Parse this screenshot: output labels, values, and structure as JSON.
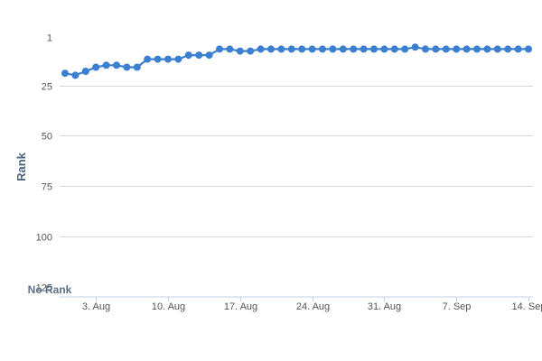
{
  "chart_data": {
    "type": "line",
    "ylabel": "Rank",
    "y_reversed": true,
    "ylim": [
      1,
      125
    ],
    "y_ticks": [
      1,
      25,
      50,
      75,
      100,
      125
    ],
    "y_floor_label": "No Rank",
    "x_start": "2024-07-31",
    "x_ticks": [
      {
        "label": "3. Aug",
        "date": "2024-08-03"
      },
      {
        "label": "10. Aug",
        "date": "2024-08-10"
      },
      {
        "label": "17. Aug",
        "date": "2024-08-17"
      },
      {
        "label": "24. Aug",
        "date": "2024-08-24"
      },
      {
        "label": "31. Aug",
        "date": "2024-08-31"
      },
      {
        "label": "7. Sep",
        "date": "2024-09-07"
      },
      {
        "label": "14. Sep",
        "date": "2024-09-14"
      }
    ],
    "grid": true,
    "legend": "none",
    "series": [
      {
        "color": "#3a7fd0",
        "x": [
          "2024-07-31",
          "2024-08-01",
          "2024-08-02",
          "2024-08-03",
          "2024-08-04",
          "2024-08-05",
          "2024-08-06",
          "2024-08-07",
          "2024-08-08",
          "2024-08-09",
          "2024-08-10",
          "2024-08-11",
          "2024-08-12",
          "2024-08-13",
          "2024-08-14",
          "2024-08-15",
          "2024-08-16",
          "2024-08-17",
          "2024-08-18",
          "2024-08-19",
          "2024-08-20",
          "2024-08-21",
          "2024-08-22",
          "2024-08-23",
          "2024-08-24",
          "2024-08-25",
          "2024-08-26",
          "2024-08-27",
          "2024-08-28",
          "2024-08-29",
          "2024-08-30",
          "2024-08-31",
          "2024-09-01",
          "2024-09-02",
          "2024-09-03",
          "2024-09-04",
          "2024-09-05",
          "2024-09-06",
          "2024-09-07",
          "2024-09-08",
          "2024-09-09",
          "2024-09-10",
          "2024-09-11",
          "2024-09-12",
          "2024-09-13",
          "2024-09-14"
        ],
        "values": [
          19,
          20,
          18,
          16,
          15,
          15,
          16,
          16,
          12,
          12,
          12,
          12,
          10,
          10,
          10,
          7,
          7,
          8,
          8,
          7,
          7,
          7,
          7,
          7,
          7,
          7,
          7,
          7,
          7,
          7,
          7,
          7,
          7,
          7,
          6,
          7,
          7,
          7,
          7,
          7,
          7,
          7,
          7,
          7,
          7,
          7
        ]
      }
    ]
  }
}
